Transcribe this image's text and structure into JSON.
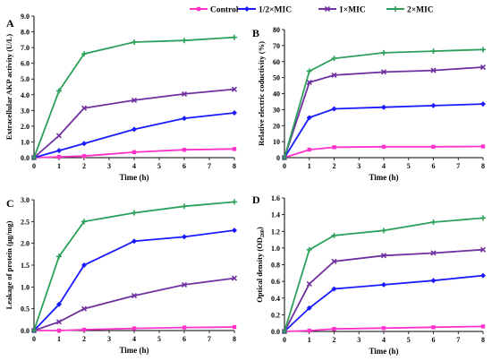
{
  "legend": [
    {
      "name": "Control",
      "color": "#ff33cc",
      "marker": "square"
    },
    {
      "name": "1/2×MIC",
      "color": "#1a1aff",
      "marker": "diamond"
    },
    {
      "name": "1×MIC",
      "color": "#7030a0",
      "marker": "cross"
    },
    {
      "name": "2×MIC",
      "color": "#2ca05a",
      "marker": "plus"
    }
  ],
  "chart_data": [
    {
      "panel": "A",
      "type": "line",
      "x": [
        0,
        1,
        2,
        4,
        6,
        8
      ],
      "xticks": [
        0,
        1,
        2,
        3,
        4,
        5,
        6,
        7,
        8
      ],
      "xlabel": "Time (h)",
      "ylabel": "Extracellular AKP activity (U/L)",
      "ylim": [
        0,
        9
      ],
      "yticks": [
        "0.0",
        "1.0",
        "2.0",
        "3.0",
        "4.0",
        "5.0",
        "6.0",
        "7.0",
        "8.0",
        "9.0"
      ],
      "series": [
        {
          "name": "Control",
          "values": [
            0,
            0.05,
            0.1,
            0.35,
            0.5,
            0.55
          ]
        },
        {
          "name": "1/2×MIC",
          "values": [
            0,
            0.45,
            0.9,
            1.8,
            2.5,
            2.85
          ]
        },
        {
          "name": "1×MIC",
          "values": [
            0,
            1.4,
            3.15,
            3.65,
            4.05,
            4.35
          ]
        },
        {
          "name": "2×MIC",
          "values": [
            0,
            4.25,
            6.6,
            7.35,
            7.45,
            7.65
          ]
        }
      ]
    },
    {
      "panel": "B",
      "type": "line",
      "x": [
        0,
        1,
        2,
        4,
        6,
        8
      ],
      "xticks": [
        0,
        1,
        2,
        3,
        4,
        5,
        6,
        7,
        8
      ],
      "xlabel": "Time (h)",
      "ylabel": "Relative electric coductivity (%)",
      "ylim": [
        0,
        80
      ],
      "yticks": [
        "0",
        "10",
        "20",
        "30",
        "40",
        "50",
        "60",
        "70",
        "80"
      ],
      "series": [
        {
          "name": "Control",
          "values": [
            0,
            5,
            6.5,
            6.8,
            6.8,
            7
          ]
        },
        {
          "name": "1/2×MIC",
          "values": [
            0,
            25,
            30.5,
            31.5,
            32.5,
            33.5
          ]
        },
        {
          "name": "1×MIC",
          "values": [
            0,
            47,
            51.5,
            53.5,
            54.5,
            56.5
          ]
        },
        {
          "name": "2×MIC",
          "values": [
            0,
            54,
            62,
            65.5,
            66.5,
            67.5
          ]
        }
      ]
    },
    {
      "panel": "C",
      "type": "line",
      "x": [
        0,
        1,
        2,
        4,
        6,
        8
      ],
      "xticks": [
        0,
        1,
        2,
        3,
        4,
        5,
        6,
        7,
        8
      ],
      "xlabel": "Time (h)",
      "ylabel": "Leakage of protein (μg/mg)",
      "ylim": [
        0,
        3
      ],
      "yticks": [
        "0.0",
        "0.5",
        "1.0",
        "1.5",
        "2.0",
        "2.5",
        "3.0"
      ],
      "series": [
        {
          "name": "Control",
          "values": [
            0,
            0,
            0.02,
            0.05,
            0.07,
            0.08
          ]
        },
        {
          "name": "1/2×MIC",
          "values": [
            0,
            0.6,
            1.5,
            2.05,
            2.15,
            2.3
          ]
        },
        {
          "name": "1×MIC",
          "values": [
            0,
            0.2,
            0.5,
            0.8,
            1.05,
            1.2
          ]
        },
        {
          "name": "2×MIC",
          "values": [
            0,
            1.7,
            2.5,
            2.7,
            2.85,
            2.95
          ]
        }
      ]
    },
    {
      "panel": "D",
      "type": "line",
      "x": [
        0,
        1,
        2,
        4,
        6,
        8
      ],
      "xticks": [
        0,
        1,
        2,
        3,
        4,
        5,
        6,
        7,
        8
      ],
      "xlabel": "Time (h)",
      "ylabel": "Optical density (OD",
      "ylabel_sub": "260",
      "ylabel_tail": ")",
      "ylim": [
        0,
        1.6
      ],
      "yticks": [
        "0.0",
        "0.2",
        "0.4",
        "0.6",
        "0.8",
        "1.0",
        "1.2",
        "1.4",
        "1.6"
      ],
      "series": [
        {
          "name": "Control",
          "values": [
            0,
            0.01,
            0.03,
            0.04,
            0.05,
            0.06
          ]
        },
        {
          "name": "1/2×MIC",
          "values": [
            0,
            0.28,
            0.51,
            0.56,
            0.61,
            0.67
          ]
        },
        {
          "name": "1×MIC",
          "values": [
            0,
            0.57,
            0.84,
            0.91,
            0.94,
            0.98
          ]
        },
        {
          "name": "2×MIC",
          "values": [
            0,
            0.98,
            1.15,
            1.21,
            1.31,
            1.36
          ]
        }
      ]
    }
  ]
}
